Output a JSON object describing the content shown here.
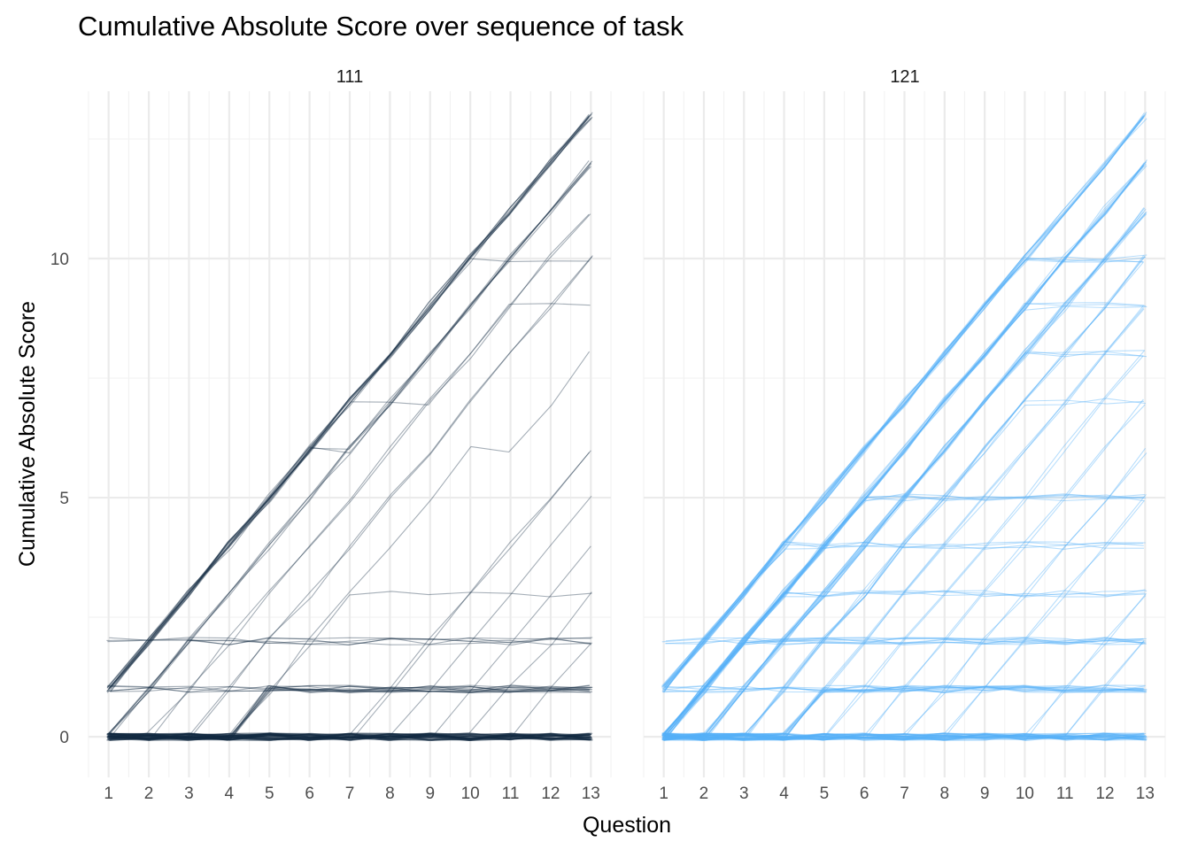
{
  "chart_data": {
    "type": "line",
    "title": "Cumulative Absolute Score over sequence of task",
    "xlabel": "Question",
    "ylabel": "Cumulative Absolute Score",
    "x": [
      1,
      2,
      3,
      4,
      5,
      6,
      7,
      8,
      9,
      10,
      11,
      12,
      13
    ],
    "xlim": [
      0.5,
      13.5
    ],
    "ylim": [
      -0.85,
      13.5
    ],
    "y_ticks": [
      0,
      5,
      10
    ],
    "grid": true,
    "legend": "none",
    "facets": [
      {
        "label": "111",
        "line_color": "#132B43",
        "series": [
          {
            "values": [
              1,
              2,
              3,
              4,
              5,
              6,
              7,
              8,
              9,
              10,
              11,
              12,
              13
            ],
            "count": 10
          },
          {
            "values": [
              1,
              2,
              3,
              4,
              5,
              6,
              6,
              7,
              8,
              9,
              10,
              11,
              12
            ],
            "count": 2
          },
          {
            "values": [
              0,
              1,
              2,
              3,
              4,
              5,
              6,
              7,
              8,
              9,
              10,
              11,
              12
            ],
            "count": 4
          },
          {
            "values": [
              0,
              0,
              1,
              2,
              3,
              4,
              5,
              6,
              7,
              8,
              9,
              10,
              11
            ],
            "count": 2
          },
          {
            "values": [
              0,
              0,
              0,
              1,
              2,
              3,
              4,
              5,
              6,
              7,
              8,
              9,
              10
            ],
            "count": 2
          },
          {
            "values": [
              1,
              2,
              3,
              4,
              5,
              6,
              7,
              8,
              9,
              10,
              10,
              10,
              10
            ],
            "count": 1
          },
          {
            "values": [
              1,
              2,
              3,
              4,
              5,
              6,
              7,
              7,
              7,
              8,
              9,
              9,
              9
            ],
            "count": 1
          },
          {
            "values": [
              0,
              0,
              0,
              0,
              1,
              2,
              3,
              4,
              5,
              6,
              6,
              7,
              8
            ],
            "count": 1
          },
          {
            "values": [
              0,
              0,
              0,
              0,
              0,
              0,
              0,
              1,
              2,
              3,
              4,
              5,
              6
            ],
            "count": 2
          },
          {
            "values": [
              0,
              0,
              0,
              0,
              0,
              0,
              0,
              0,
              1,
              2,
              3,
              4,
              5
            ],
            "count": 1
          },
          {
            "values": [
              0,
              0,
              0,
              0,
              0,
              0,
              0,
              0,
              0,
              1,
              2,
              3,
              4
            ],
            "count": 1
          },
          {
            "values": [
              0,
              0,
              0,
              0,
              1,
              2,
              3,
              3,
              3,
              3,
              3,
              3,
              3
            ],
            "count": 1
          },
          {
            "values": [
              0,
              0,
              0,
              0,
              0,
              0,
              0,
              0,
              0,
              0,
              1,
              2,
              3
            ],
            "count": 1
          },
          {
            "values": [
              0,
              0,
              0,
              0,
              0,
              0,
              0,
              0,
              0,
              0,
              0,
              1,
              2
            ],
            "count": 1
          },
          {
            "values": [
              2,
              2,
              2,
              2,
              2,
              2,
              2,
              2,
              2,
              2,
              2,
              2,
              2
            ],
            "count": 3
          },
          {
            "values": [
              0,
              1,
              2,
              2,
              2,
              2,
              2,
              2,
              2,
              2,
              2,
              2,
              2
            ],
            "count": 2
          },
          {
            "values": [
              1,
              1,
              1,
              1,
              1,
              1,
              1,
              1,
              1,
              1,
              1,
              1,
              1
            ],
            "count": 5
          },
          {
            "values": [
              0,
              0,
              0,
              0,
              1,
              1,
              1,
              1,
              1,
              1,
              1,
              1,
              1
            ],
            "count": 8
          },
          {
            "values": [
              0,
              0,
              0,
              0,
              0,
              0,
              0,
              0,
              0,
              0,
              0,
              0,
              0
            ],
            "count": 45
          }
        ]
      },
      {
        "label": "121",
        "line_color": "#56B1F7",
        "series": [
          {
            "values": [
              1,
              2,
              3,
              4,
              5,
              6,
              7,
              8,
              9,
              10,
              11,
              12,
              13
            ],
            "count": 10
          },
          {
            "values": [
              0,
              1,
              2,
              3,
              4,
              5,
              6,
              7,
              8,
              9,
              10,
              11,
              12
            ],
            "count": 10
          },
          {
            "values": [
              0,
              0,
              1,
              2,
              3,
              4,
              5,
              6,
              7,
              8,
              9,
              10,
              11
            ],
            "count": 8
          },
          {
            "values": [
              0,
              0,
              0,
              1,
              2,
              3,
              4,
              5,
              6,
              7,
              8,
              9,
              10
            ],
            "count": 4
          },
          {
            "values": [
              0,
              0,
              0,
              0,
              1,
              2,
              3,
              4,
              5,
              6,
              7,
              8,
              9
            ],
            "count": 3
          },
          {
            "values": [
              1,
              2,
              3,
              4,
              5,
              6,
              7,
              8,
              9,
              10,
              10,
              10,
              10
            ],
            "count": 4
          },
          {
            "values": [
              0,
              1,
              2,
              3,
              4,
              5,
              6,
              7,
              8,
              9,
              9,
              9,
              9
            ],
            "count": 3
          },
          {
            "values": [
              0,
              0,
              1,
              2,
              3,
              4,
              5,
              6,
              7,
              8,
              8,
              8,
              8
            ],
            "count": 3
          },
          {
            "values": [
              0,
              0,
              0,
              1,
              2,
              3,
              4,
              5,
              6,
              7,
              7,
              7,
              7
            ],
            "count": 2
          },
          {
            "values": [
              0,
              0,
              0,
              0,
              0,
              1,
              2,
              3,
              4,
              5,
              6,
              7,
              8
            ],
            "count": 2
          },
          {
            "values": [
              0,
              0,
              0,
              0,
              0,
              0,
              1,
              2,
              3,
              4,
              5,
              6,
              7
            ],
            "count": 2
          },
          {
            "values": [
              0,
              0,
              0,
              0,
              0,
              0,
              0,
              1,
              2,
              3,
              4,
              5,
              6
            ],
            "count": 2
          },
          {
            "values": [
              0,
              0,
              0,
              0,
              0,
              0,
              0,
              0,
              1,
              2,
              3,
              4,
              5
            ],
            "count": 2
          },
          {
            "values": [
              0,
              1,
              2,
              3,
              4,
              5,
              5,
              5,
              5,
              5,
              5,
              5,
              5
            ],
            "count": 5
          },
          {
            "values": [
              1,
              2,
              3,
              4,
              4,
              4,
              4,
              4,
              4,
              4,
              4,
              4,
              4
            ],
            "count": 4
          },
          {
            "values": [
              0,
              1,
              2,
              3,
              3,
              3,
              3,
              3,
              3,
              3,
              3,
              3,
              3
            ],
            "count": 4
          },
          {
            "values": [
              0,
              0,
              0,
              0,
              0,
              0,
              0,
              0,
              0,
              0,
              1,
              2,
              3
            ],
            "count": 2
          },
          {
            "values": [
              0,
              0,
              0,
              0,
              0,
              0,
              0,
              0,
              0,
              0,
              0,
              1,
              2
            ],
            "count": 2
          },
          {
            "values": [
              2,
              2,
              2,
              2,
              2,
              2,
              2,
              2,
              2,
              2,
              2,
              2,
              2
            ],
            "count": 4
          },
          {
            "values": [
              0,
              1,
              2,
              2,
              2,
              2,
              2,
              2,
              2,
              2,
              2,
              2,
              2
            ],
            "count": 5
          },
          {
            "values": [
              1,
              1,
              1,
              1,
              1,
              1,
              1,
              1,
              1,
              1,
              1,
              1,
              1
            ],
            "count": 6
          },
          {
            "values": [
              0,
              0,
              0,
              0,
              1,
              1,
              1,
              1,
              1,
              1,
              1,
              1,
              1
            ],
            "count": 8
          },
          {
            "values": [
              0,
              0,
              0,
              0,
              0,
              0,
              0,
              0,
              0,
              0,
              0,
              0,
              0
            ],
            "count": 30
          }
        ]
      }
    ]
  }
}
